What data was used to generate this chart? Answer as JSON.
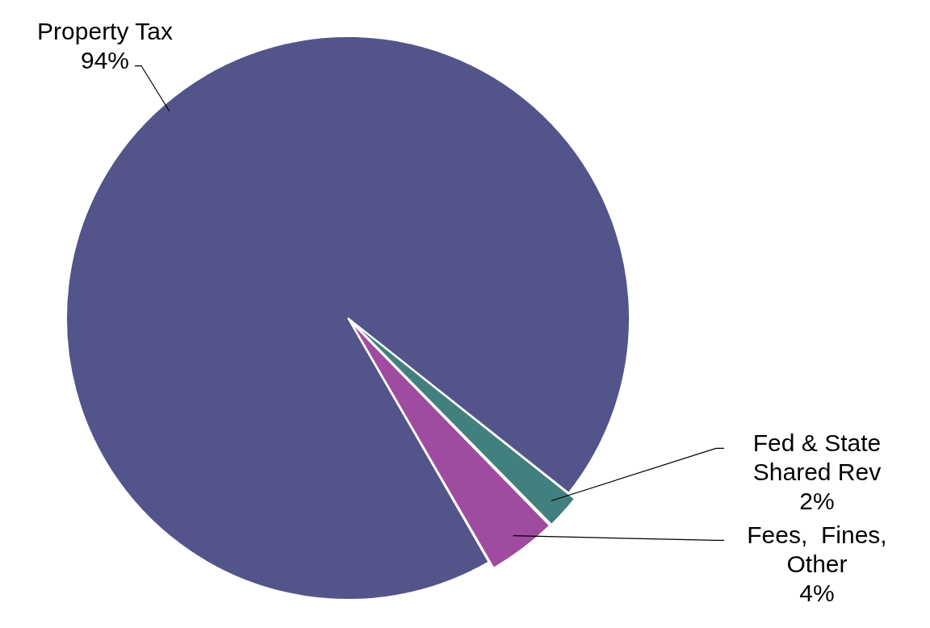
{
  "chart_data": {
    "type": "pie",
    "categories": [
      "Property Tax",
      "Fed & State Shared Rev",
      "Fees,  Fines, Other"
    ],
    "values": [
      94,
      2,
      4
    ],
    "value_labels": [
      "94%",
      "2%",
      "4%"
    ],
    "colors": [
      "#53548a",
      "#42807f",
      "#9f4ba0"
    ],
    "legend": false
  }
}
